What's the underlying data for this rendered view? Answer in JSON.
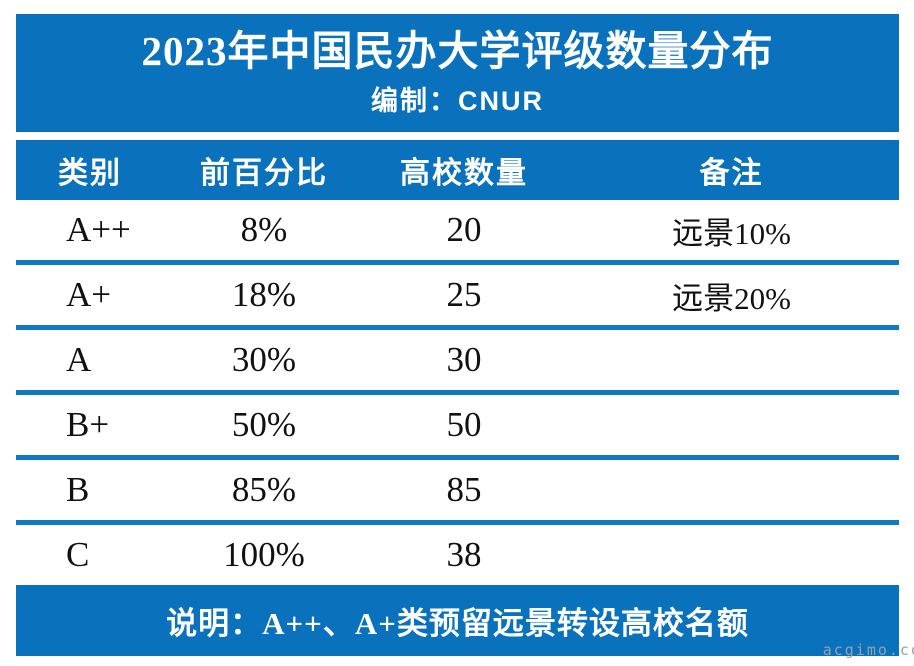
{
  "header": {
    "title": "2023年中国民办大学评级数量分布",
    "subtitle": "编制：CNUR"
  },
  "chart_data": {
    "type": "table",
    "title": "2023年中国民办大学评级数量分布",
    "subtitle": "编制：CNUR",
    "columns": [
      "类别",
      "前百分比",
      "高校数量",
      "备注"
    ],
    "rows": [
      [
        "A++",
        "8%",
        "20",
        "远景10%"
      ],
      [
        "A+",
        "18%",
        "25",
        "远景20%"
      ],
      [
        "A",
        "30%",
        "30",
        ""
      ],
      [
        "B+",
        "50%",
        "50",
        ""
      ],
      [
        "B",
        "85%",
        "85",
        ""
      ],
      [
        "C",
        "100%",
        "38",
        ""
      ]
    ],
    "counts_numeric": [
      20,
      25,
      30,
      50,
      85,
      38
    ],
    "top_percent_numeric": [
      8,
      18,
      30,
      50,
      85,
      100
    ],
    "footnote": "说明：A++、A+类预留远景转设高校名额",
    "layout": "four-column table, blue header band, blue rule between rows, no vertical rules"
  },
  "footer": {
    "note": "说明：A++、A+类预留远景转设高校名额"
  },
  "watermark": "acgimo.co",
  "colors": {
    "band_blue": "#0a72bd",
    "divider_blue": "#1178c2",
    "text": "#111111",
    "watermark": "#93a0ab"
  }
}
